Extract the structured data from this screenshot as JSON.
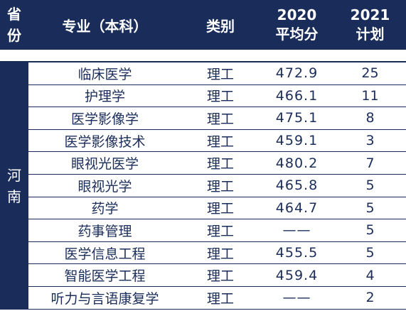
{
  "header": {
    "province_chars": [
      "省",
      "份"
    ],
    "major": "专业（本科）",
    "category": "类别",
    "avg_year": "2020",
    "avg_label": "平均分",
    "plan_year": "2021",
    "plan_label": "计划"
  },
  "province": [
    "河",
    "南"
  ],
  "rows": [
    {
      "major": "临床医学",
      "category": "理工",
      "avg": "472.9",
      "plan": "25"
    },
    {
      "major": "护理学",
      "category": "理工",
      "avg": "466.1",
      "plan": "11"
    },
    {
      "major": "医学影像学",
      "category": "理工",
      "avg": "475.1",
      "plan": "8"
    },
    {
      "major": "医学影像技术",
      "category": "理工",
      "avg": "459.1",
      "plan": "3"
    },
    {
      "major": "眼视光医学",
      "category": "理工",
      "avg": "480.2",
      "plan": "7"
    },
    {
      "major": "眼视光学",
      "category": "理工",
      "avg": "465.8",
      "plan": "5"
    },
    {
      "major": "药学",
      "category": "理工",
      "avg": "464.7",
      "plan": "5"
    },
    {
      "major": "药事管理",
      "category": "理工",
      "avg": "——",
      "plan": "5"
    },
    {
      "major": "医学信息工程",
      "category": "理工",
      "avg": "455.5",
      "plan": "5"
    },
    {
      "major": "智能医学工程",
      "category": "理工",
      "avg": "459.4",
      "plan": "4"
    },
    {
      "major": "听力与言语康复学",
      "category": "理工",
      "avg": "——",
      "plan": "2"
    }
  ]
}
